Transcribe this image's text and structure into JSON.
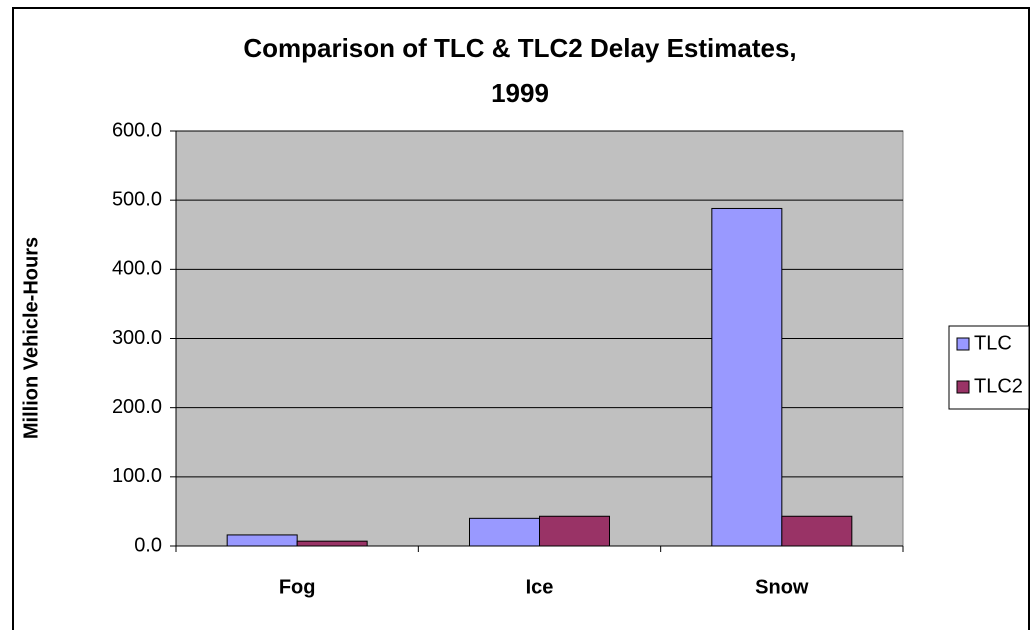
{
  "chart_data": {
    "type": "bar",
    "title": [
      "Comparison of TLC & TLC2 Delay Estimates,",
      "1999"
    ],
    "y_label": "Million Vehicle-Hours",
    "categories": [
      "Fog",
      "Ice",
      "Snow"
    ],
    "series": [
      {
        "name": "TLC",
        "color": "#9999ff",
        "values": [
          16,
          40,
          488
        ]
      },
      {
        "name": "TLC2",
        "color": "#993366",
        "values": [
          7,
          43,
          43
        ]
      }
    ],
    "ylim": [
      0,
      600
    ],
    "yticks": [
      {
        "value": 0,
        "label": "0.0"
      },
      {
        "value": 100,
        "label": "100.0"
      },
      {
        "value": 200,
        "label": "200.0"
      },
      {
        "value": 300,
        "label": "300.0"
      },
      {
        "value": 400,
        "label": "400.0"
      },
      {
        "value": 500,
        "label": "500.0"
      },
      {
        "value": 600,
        "label": "600.0"
      }
    ],
    "grid": true,
    "plot_background": "#c0c0c0",
    "legend": "right"
  }
}
